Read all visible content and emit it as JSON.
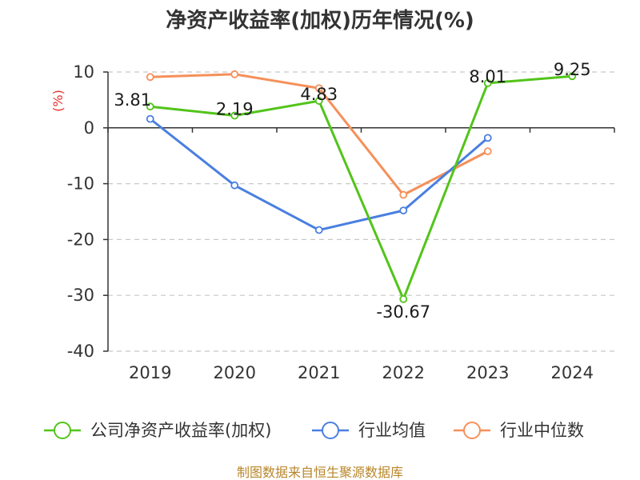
{
  "chart_data": {
    "type": "line",
    "title": "净资产收益率(加权)历年情况(%)",
    "ylabel": "(%)",
    "categories": [
      "2019",
      "2020",
      "2021",
      "2022",
      "2023",
      "2024"
    ],
    "ylim": [
      -40,
      10
    ],
    "yticks": [
      10,
      0,
      -10,
      -20,
      -30,
      -40
    ],
    "grid": true,
    "legend_position": "bottom",
    "series": [
      {
        "name": "公司净资产收益率(加权)",
        "color": "#52c41a",
        "values": [
          3.81,
          2.19,
          4.83,
          -30.67,
          8.01,
          9.25
        ],
        "labels": [
          "3.81",
          "2.19",
          "4.83",
          "-30.67",
          "8.01",
          "9.25"
        ]
      },
      {
        "name": "行业均值",
        "color": "#4a7fe0",
        "values": [
          1.6,
          -10.3,
          -18.3,
          -14.8,
          -1.8,
          null
        ]
      },
      {
        "name": "行业中位数",
        "color": "#f5905a",
        "values": [
          9.1,
          9.6,
          7.1,
          -12.0,
          -4.2,
          null
        ]
      }
    ],
    "source": "制图数据来自恒生聚源数据库"
  }
}
